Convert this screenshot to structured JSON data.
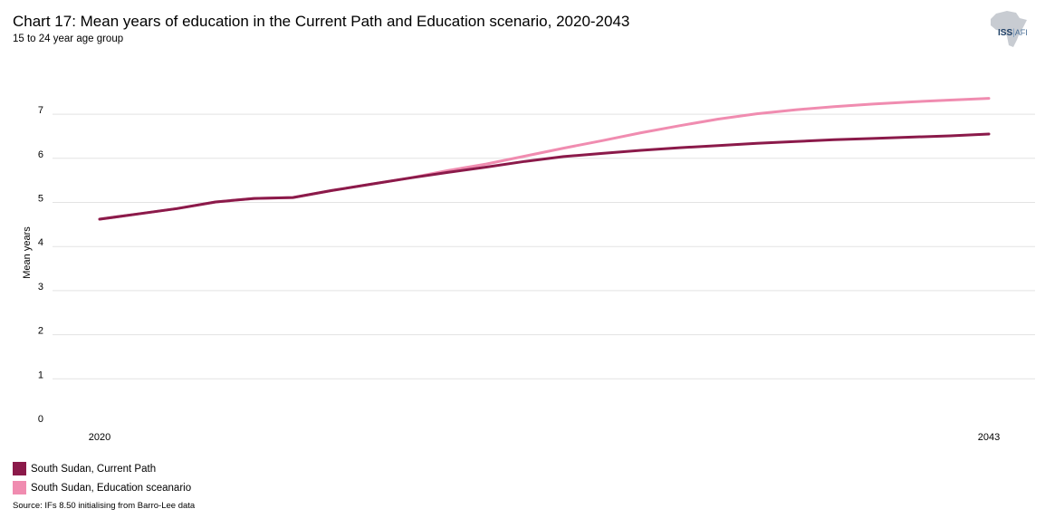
{
  "header": {
    "title": "Chart 17: Mean years of education in the Current Path and Education scenario, 2020-2043",
    "subtitle": "15 to 24 year age group"
  },
  "logo": {
    "iss": "ISS",
    "separator": "|",
    "afi": "AFI"
  },
  "chart_data": {
    "type": "line",
    "title": "Chart 17: Mean years of education in the Current Path and Education scenario, 2020-2043",
    "subtitle": "15 to 24 year age group",
    "xlabel": "",
    "ylabel": "Mean years",
    "x": [
      2020,
      2021,
      2022,
      2023,
      2024,
      2025,
      2026,
      2027,
      2028,
      2029,
      2030,
      2031,
      2032,
      2033,
      2034,
      2035,
      2036,
      2037,
      2038,
      2039,
      2040,
      2041,
      2042,
      2043
    ],
    "x_tick_labels": [
      "2020",
      "2043"
    ],
    "y_ticks": [
      0,
      1,
      2,
      3,
      4,
      5,
      6,
      7
    ],
    "ylim": [
      0,
      7.5
    ],
    "grid": true,
    "legend_position": "bottom-left",
    "series": [
      {
        "name": "South Sudan, Education sceanario",
        "color": "#f08cb0",
        "values": [
          4.62,
          4.74,
          4.86,
          5.01,
          5.09,
          5.11,
          5.27,
          5.41,
          5.55,
          5.72,
          5.87,
          6.05,
          6.23,
          6.4,
          6.58,
          6.74,
          6.89,
          7.01,
          7.1,
          7.17,
          7.23,
          7.28,
          7.32,
          7.36
        ]
      },
      {
        "name": "South Sudan, Current Path",
        "color": "#8b1a4a",
        "values": [
          4.62,
          4.74,
          4.86,
          5.01,
          5.09,
          5.11,
          5.27,
          5.41,
          5.55,
          5.68,
          5.8,
          5.93,
          6.04,
          6.11,
          6.18,
          6.24,
          6.29,
          6.34,
          6.38,
          6.42,
          6.45,
          6.48,
          6.51,
          6.55
        ]
      }
    ]
  },
  "legend": {
    "items": [
      {
        "label": "South Sudan, Current Path",
        "color": "#8b1a4a"
      },
      {
        "label": "South Sudan, Education sceanario",
        "color": "#f08cb0"
      }
    ]
  },
  "source": "Source: IFs 8.50 initialising from Barro-Lee data"
}
